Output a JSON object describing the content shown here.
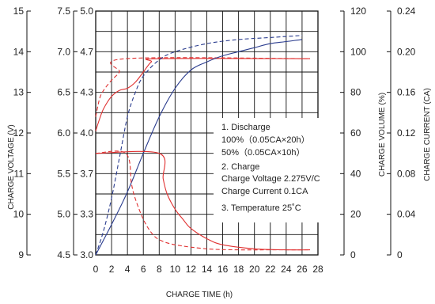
{
  "chart_data": {
    "type": "line",
    "xlabel": "CHARGE TIME (h)",
    "x_ticks": [
      "0",
      "2",
      "4",
      "6",
      "8",
      "10",
      "12",
      "14",
      "16",
      "18",
      "20",
      "22",
      "24",
      "26",
      "28"
    ],
    "xlim": [
      0,
      28
    ],
    "axes": [
      {
        "label": "CHARGE VOLTAGE (V)",
        "ticks": [
          "9",
          "10",
          "11",
          "12",
          "13",
          "14",
          "15"
        ],
        "range": [
          9,
          15
        ],
        "unit": "V"
      },
      {
        "label": "",
        "ticks": [
          "4.5",
          "5.0",
          "5.5",
          "6.0",
          "6.5",
          "7.0",
          "7.5"
        ],
        "range": [
          4.5,
          7.5
        ],
        "unit": "V"
      },
      {
        "label": "",
        "ticks": [
          "3.0",
          "3.3",
          "3.7",
          "4.0",
          "4.3",
          "4.7",
          "5.0"
        ],
        "range": [
          3.0,
          5.0
        ],
        "unit": "V"
      },
      {
        "label": "CHARGE VOLUME (%)",
        "ticks": [
          "0",
          "20",
          "40",
          "60",
          "80",
          "100",
          "120"
        ],
        "range": [
          0,
          120
        ],
        "unit": "%"
      },
      {
        "label": "CHARGE CURRENT (CA)",
        "ticks": [
          "0",
          "0.04",
          "0.08",
          "0.12",
          "0.16",
          "0.20",
          "0.24"
        ],
        "range": [
          0,
          0.24
        ],
        "unit": "CA"
      }
    ],
    "series": [
      {
        "kind": "voltage",
        "axis": "CHARGE VOLTAGE (V)",
        "color": "#e03030",
        "dash": false,
        "x": [
          0,
          0.5,
          1,
          2,
          3,
          4,
          5,
          6,
          7,
          8,
          27
        ],
        "y": [
          12.05,
          12.35,
          12.6,
          12.9,
          13.05,
          13.1,
          13.25,
          13.5,
          13.75,
          13.83,
          13.83
        ]
      },
      {
        "kind": "voltage",
        "axis": "CHARGE VOLTAGE (V)",
        "color": "#e03030",
        "dash": true,
        "x": [
          0,
          0.5,
          1,
          2,
          3,
          3.8,
          27
        ],
        "y": [
          12.4,
          12.85,
          13.05,
          13.3,
          13.5,
          13.83,
          13.83
        ]
      },
      {
        "kind": "volume",
        "axis": "CHARGE VOLUME (%)",
        "color": "#2a3c8e",
        "dash": false,
        "x": [
          0,
          2,
          4,
          6,
          8,
          10,
          12,
          14,
          16,
          18,
          20,
          22,
          24,
          26
        ],
        "y": [
          0,
          15,
          31,
          50,
          68,
          82,
          91,
          95,
          98,
          100,
          102,
          104,
          105,
          106
        ]
      },
      {
        "kind": "volume",
        "axis": "CHARGE VOLUME (%)",
        "color": "#2a3c8e",
        "dash": true,
        "x": [
          0,
          1,
          2,
          3,
          4,
          5,
          6,
          8,
          10,
          14,
          18,
          22,
          26
        ],
        "y": [
          0,
          12,
          28,
          48,
          68,
          80,
          88,
          96,
          100,
          104,
          106,
          107,
          108
        ]
      },
      {
        "kind": "current",
        "axis": "CHARGE CURRENT (CA)",
        "color": "#e03030",
        "dash": false,
        "x": [
          0,
          8,
          8.5,
          9,
          10,
          11,
          12,
          14,
          16,
          20,
          24,
          27
        ],
        "y": [
          0.1,
          0.1,
          0.075,
          0.06,
          0.045,
          0.035,
          0.026,
          0.016,
          0.01,
          0.006,
          0.005,
          0.005
        ]
      },
      {
        "kind": "current",
        "axis": "CHARGE CURRENT (CA)",
        "color": "#e03030",
        "dash": true,
        "x": [
          0,
          3.8,
          4.5,
          5,
          6,
          7,
          8,
          10,
          14,
          18,
          22,
          27
        ],
        "y": [
          0.1,
          0.1,
          0.07,
          0.055,
          0.035,
          0.022,
          0.015,
          0.01,
          0.006,
          0.005,
          0.005,
          0.005
        ]
      }
    ],
    "annotations": [
      "1. Discharge",
      "100%（0.05CA×20h）",
      "50%（0.05CA×10h）",
      "2. Charge",
      "Charge Voltage 2.275V/C",
      "Charge Current 0.1CA",
      "3. Temperature 25˚C"
    ],
    "grid": true
  }
}
